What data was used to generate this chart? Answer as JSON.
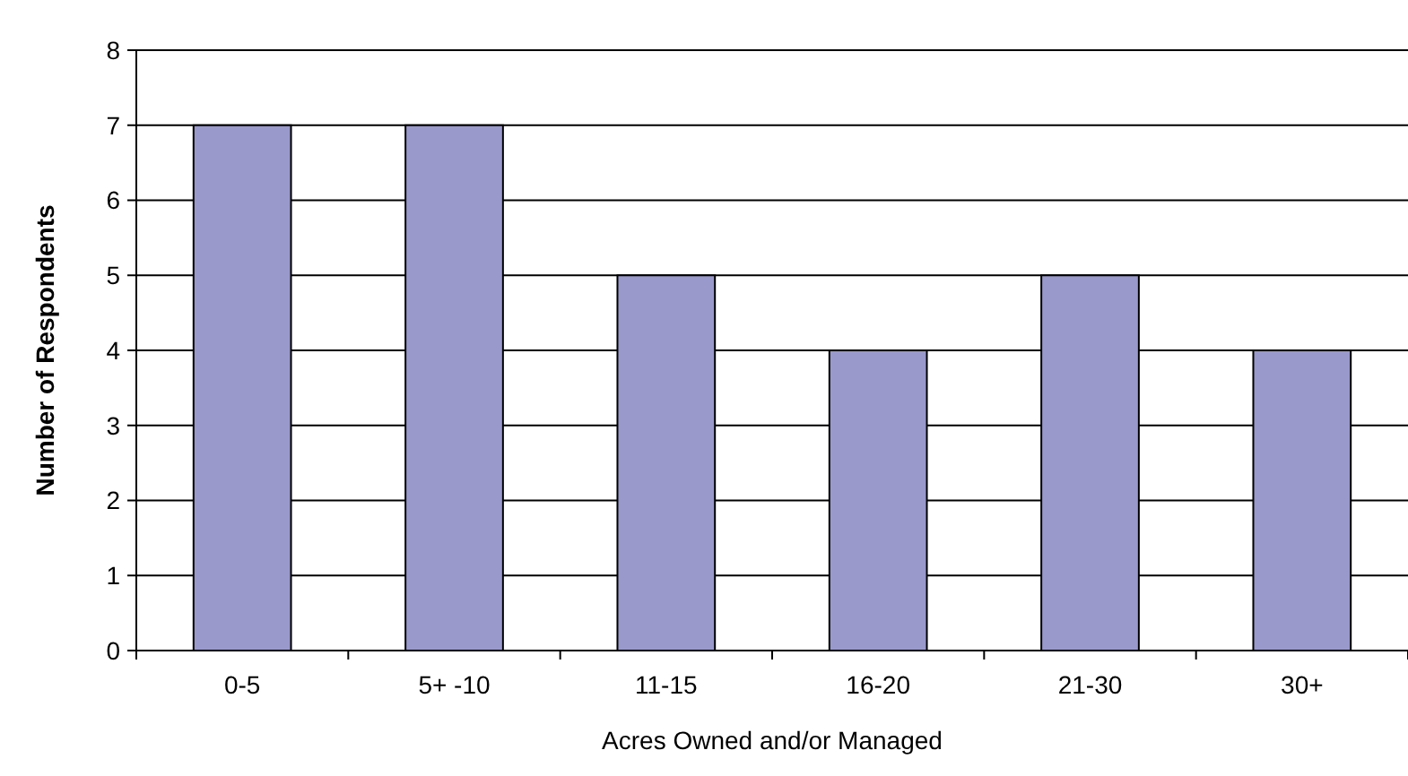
{
  "chart_data": {
    "type": "bar",
    "xlabel": "Acres Owned and/or Managed",
    "ylabel": "Number of Respondents",
    "categories": [
      "0-5",
      "5+ -10",
      "11-15",
      "16-20",
      "21-30",
      "30+"
    ],
    "values": [
      7,
      7,
      5,
      4,
      5,
      4
    ],
    "color": "#9999cc",
    "ylim": [
      0,
      8
    ],
    "yticks": [
      0,
      1,
      2,
      3,
      4,
      5,
      6,
      7,
      8
    ],
    "grid": "y"
  }
}
